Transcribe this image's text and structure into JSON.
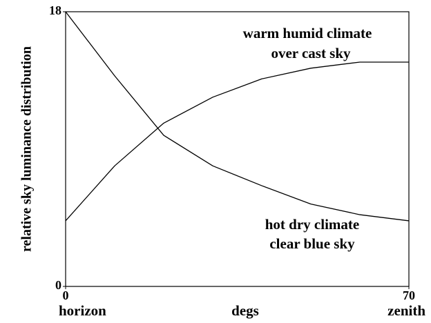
{
  "chart_data": {
    "type": "line",
    "ylabel": "relative sky luminance distribution",
    "xlabel": "degs",
    "x_end_labels": [
      "horizon",
      "zenith"
    ],
    "x": [
      0,
      10,
      20,
      30,
      40,
      50,
      60,
      70
    ],
    "series": [
      {
        "color": "#000000",
        "values": [
          18,
          13.8,
          9.9,
          7.9,
          6.6,
          5.4,
          4.7,
          4.3
        ]
      },
      {
        "color": "#000000",
        "values": [
          4.3,
          7.9,
          10.7,
          12.4,
          13.6,
          14.3,
          14.7,
          14.7
        ]
      }
    ],
    "annotations": [
      "warm humid climate",
      "over cast sky",
      "hot dry climate",
      "clear blue sky"
    ],
    "xlim": [
      0,
      70
    ],
    "ylim": [
      0,
      18
    ],
    "xticks": [
      0,
      70
    ],
    "yticks": [
      0,
      18
    ]
  }
}
